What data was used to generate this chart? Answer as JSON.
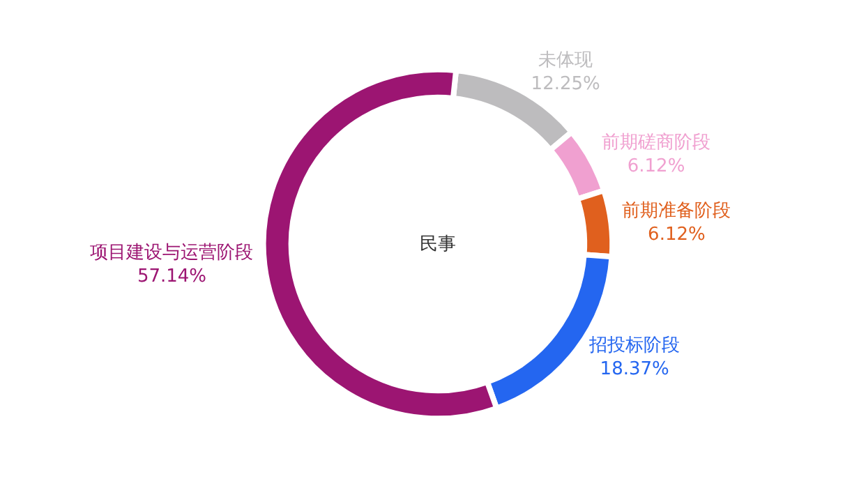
{
  "chart_data": {
    "type": "donut",
    "title": "民事",
    "categories": [
      "未体现",
      "前期磋商阶段",
      "前期准备阶段",
      "招投标阶段",
      "项目建设与运营阶段"
    ],
    "values": [
      12.25,
      6.12,
      6.12,
      18.37,
      57.14
    ],
    "value_labels": [
      "12.25%",
      "6.12%",
      "6.12%",
      "18.37%",
      "57.14%"
    ],
    "colors": [
      "#bdbcbe",
      "#f0a0d0",
      "#e0601e",
      "#2466f0",
      "#9c1572"
    ],
    "legend": false
  }
}
